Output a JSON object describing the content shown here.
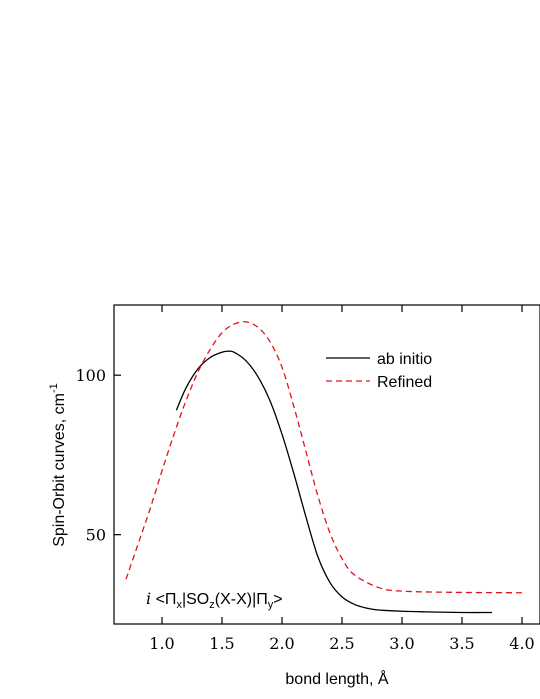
{
  "chart_data": {
    "type": "line",
    "xlabel": "bond length, Å",
    "ylabel": "Spin-Orbit curves, cm",
    "ylabel_sup": "-1",
    "xlim": [
      0.6,
      4.15
    ],
    "ylim": [
      22,
      122
    ],
    "x_ticks": [
      1.0,
      1.5,
      2.0,
      2.5,
      3.0,
      3.5,
      4.0
    ],
    "x_tick_labels": [
      "1.0",
      "1.5",
      "2.0",
      "2.5",
      "3.0",
      "3.5",
      "4.0"
    ],
    "y_ticks": [
      50,
      100
    ],
    "y_tick_labels": [
      "50",
      "100"
    ],
    "grid": false,
    "legend_position": "top-right",
    "annotation": {
      "italic": "i",
      "text": " <Π",
      "sub1": "x",
      "mid": "|SO",
      "sub2": "z",
      "mid2": "(X-X)|Π",
      "sub3": "y",
      "end": ">"
    },
    "series": [
      {
        "name": "ab initio",
        "color": "#000000",
        "dash": "solid",
        "x": [
          1.12,
          1.2,
          1.3,
          1.4,
          1.5,
          1.55,
          1.6,
          1.7,
          1.8,
          1.9,
          2.0,
          2.1,
          2.2,
          2.3,
          2.4,
          2.5,
          2.6,
          2.7,
          2.8,
          3.0,
          3.2,
          3.5,
          3.75
        ],
        "y": [
          89,
          96,
          102,
          105.5,
          107.2,
          107.5,
          107.2,
          104.5,
          99.5,
          92,
          81.5,
          69,
          55.5,
          43,
          35,
          30.5,
          28.2,
          27,
          26.4,
          26,
          25.8,
          25.6,
          25.6
        ]
      },
      {
        "name": "Refined",
        "color": "#e0141e",
        "dash": "dashed",
        "x": [
          0.7,
          0.8,
          0.9,
          1.0,
          1.1,
          1.2,
          1.3,
          1.4,
          1.5,
          1.6,
          1.7,
          1.8,
          1.9,
          2.0,
          2.1,
          2.2,
          2.3,
          2.4,
          2.5,
          2.6,
          2.8,
          3.0,
          3.5,
          4.0
        ],
        "y": [
          36,
          47,
          58,
          70,
          81.5,
          92,
          101,
          108,
          113.3,
          116,
          116.7,
          115,
          110.5,
          102.5,
          90,
          76,
          62,
          50.5,
          42.5,
          37.5,
          33.5,
          32.3,
          31.9,
          31.8
        ]
      }
    ]
  }
}
